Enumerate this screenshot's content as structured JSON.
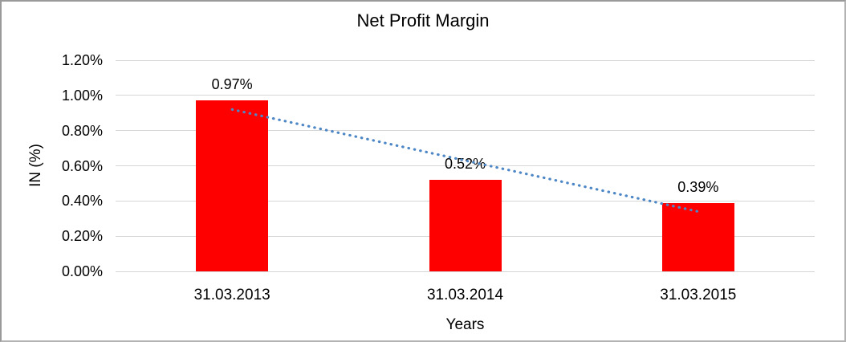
{
  "chart_data": {
    "type": "bar",
    "title": "Net Profit Margin",
    "xlabel": "Years",
    "ylabel": "IN (%)",
    "categories": [
      "31.03.2013",
      "31.03.2014",
      "31.03.2015"
    ],
    "series": [
      {
        "name": "Net Profit Margin",
        "values": [
          0.97,
          0.52,
          0.39
        ]
      }
    ],
    "data_labels": [
      "0.97%",
      "0.52%",
      "0.39%"
    ],
    "ylim": [
      0,
      1.2
    ],
    "ytick_step": 0.2,
    "ytick_labels": [
      "0.00%",
      "0.20%",
      "0.40%",
      "0.60%",
      "0.80%",
      "1.00%",
      "1.20%"
    ],
    "grid": true,
    "legend": "none",
    "bar_color": "#FF0000",
    "gridline_color": "#D6D6D6",
    "text_color": "#000000",
    "trendline": {
      "type": "linear",
      "style": "dotted",
      "color": "#4E87C5",
      "start_value": 0.92,
      "end_value": 0.34
    }
  }
}
